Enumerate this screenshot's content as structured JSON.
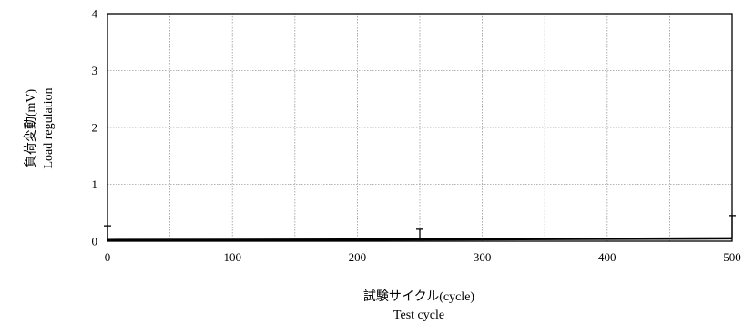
{
  "chart_data": {
    "type": "line",
    "xlabel_jp": "試験サイクル(cycle)",
    "xlabel_en": "Test cycle",
    "ylabel_jp": "負荷変動(mV)",
    "ylabel_en": "Load regulation",
    "xlim": [
      0,
      500
    ],
    "ylim": [
      0,
      4
    ],
    "xticks": [
      0,
      100,
      200,
      300,
      400,
      500
    ],
    "yticks": [
      0,
      1,
      2,
      3,
      4
    ],
    "x_grid_step": 50,
    "y_grid_step": 1,
    "grid": true,
    "series": [
      {
        "x": [
          0,
          250,
          500
        ],
        "values": [
          0.02,
          0.03,
          0.05
        ],
        "error_high": [
          0.25,
          0.18,
          0.4
        ],
        "error_low": [
          0.0,
          0.0,
          0.0
        ]
      }
    ]
  }
}
